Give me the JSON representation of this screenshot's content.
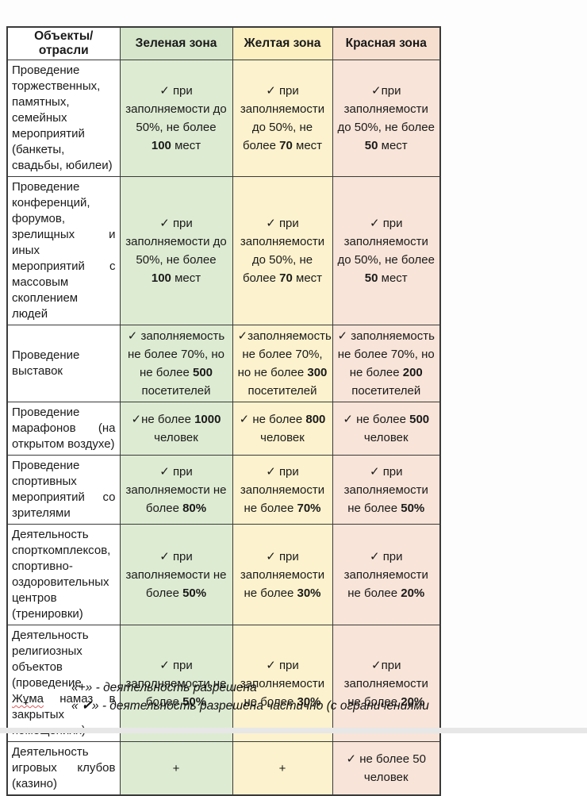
{
  "colors": {
    "border": "#3a3a3a",
    "green_header": "#d5e6cb",
    "green_cell": "#ddebd2",
    "yellow_header": "#fcefc0",
    "yellow_cell": "#fcf2cd",
    "red_header": "#f7dfcf",
    "red_cell": "#f8e4d8"
  },
  "table": {
    "headers": [
      "Объекты/отрасли",
      "Зеленая зона",
      "Желтая зона",
      "Красная зона"
    ],
    "rows": [
      {
        "label": "Проведение торжественных, памятных, семейных мероприятий (банкеты, свадьбы, юбилеи)",
        "green": "✓ при заполняемости до 50%, не более **100** мест",
        "yellow": "✓ при заполняемости до 50%, не более **70** мест",
        "red": "✓при заполняемости до 50%, не более **50** мест"
      },
      {
        "label": "Проведение конференций, форумов, зрелищных и иных мероприятий с массовым скоплением людей",
        "green": "✓ при заполняемости до 50%, не более **100** мест",
        "yellow": "✓ при заполняемости до 50%, не более **70** мест",
        "red": "✓ при заполняемости до 50%, не более **50** мест"
      },
      {
        "label": "Проведение выставок",
        "green": "✓ заполняемость не более 70%, но не более **500** посетителей",
        "yellow": "✓заполняемость не более 70%, но не более **300** посетителей",
        "red": "✓ заполняемость не более 70%, но не более **200** посетителей"
      },
      {
        "label": "Проведение марафонов (на открытом воздухе)",
        "green": "✓не более **1000** человек",
        "yellow": "✓ не более **800** человек",
        "red": "✓ не более **500** человек"
      },
      {
        "label": "Проведение спортивных мероприятий со зрителями",
        "green": "✓ при заполняемости не более **80%**",
        "yellow": "✓ при заполняемости не более **70%**",
        "red": "✓ при заполняемости не более **50%**"
      },
      {
        "label": "Деятельность спорткомплексов, спортивно-оздоровительных центров (тренировки)",
        "green": "✓ при заполняемости не более **50%**",
        "yellow": "✓ при заполняемости не более **30%**",
        "red": "✓ при заполняемости не более **20%**"
      },
      {
        "label": "Деятельность религиозных объектов (проведение ~~Жұма~~ намаз в закрытых помещениях)",
        "green": "✓ при заполняемости не более **50%**",
        "yellow": "✓ при заполняемости не более **30%**",
        "red": "✓при заполняемости не более **20%**"
      },
      {
        "label": "Деятельность игровых клубов (казино)",
        "green": "+",
        "yellow": "+",
        "red": "✓ не более 50 человек"
      }
    ]
  },
  "legend": {
    "note_plus": "«+» - деятельность разрешена",
    "note_check": "« ✔» - деятельность разрешена частично (с ограничениями"
  }
}
